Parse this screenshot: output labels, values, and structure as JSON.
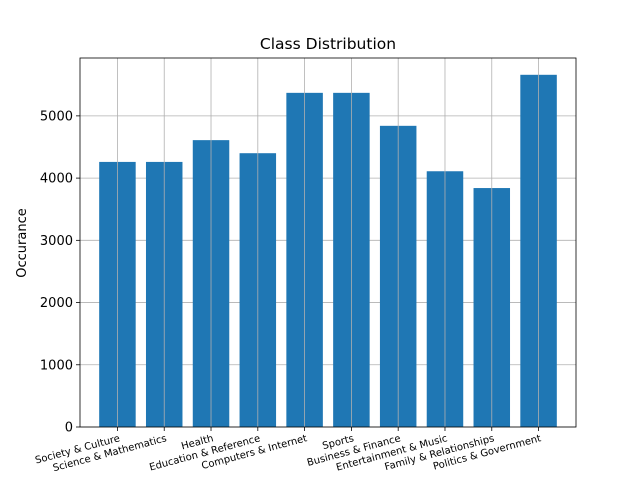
{
  "chart_data": {
    "type": "bar",
    "title": "Class Distribution",
    "xlabel": "",
    "ylabel": "Occurance",
    "categories": [
      "Society & Culture",
      "Science & Mathematics",
      "Health",
      "Education & Reference",
      "Computers & Internet",
      "Sports",
      "Business & Finance",
      "Entertainment & Music",
      "Family & Relationships",
      "Politics & Government"
    ],
    "values": [
      4260,
      4260,
      4610,
      4400,
      5370,
      5370,
      4840,
      4110,
      3840,
      5660
    ],
    "ylim": [
      0,
      5930
    ],
    "yticks": [
      0,
      1000,
      2000,
      3000,
      4000,
      5000
    ],
    "grid": true,
    "bar_color": "#1f77b4",
    "grid_color": "#b0b0b0"
  }
}
